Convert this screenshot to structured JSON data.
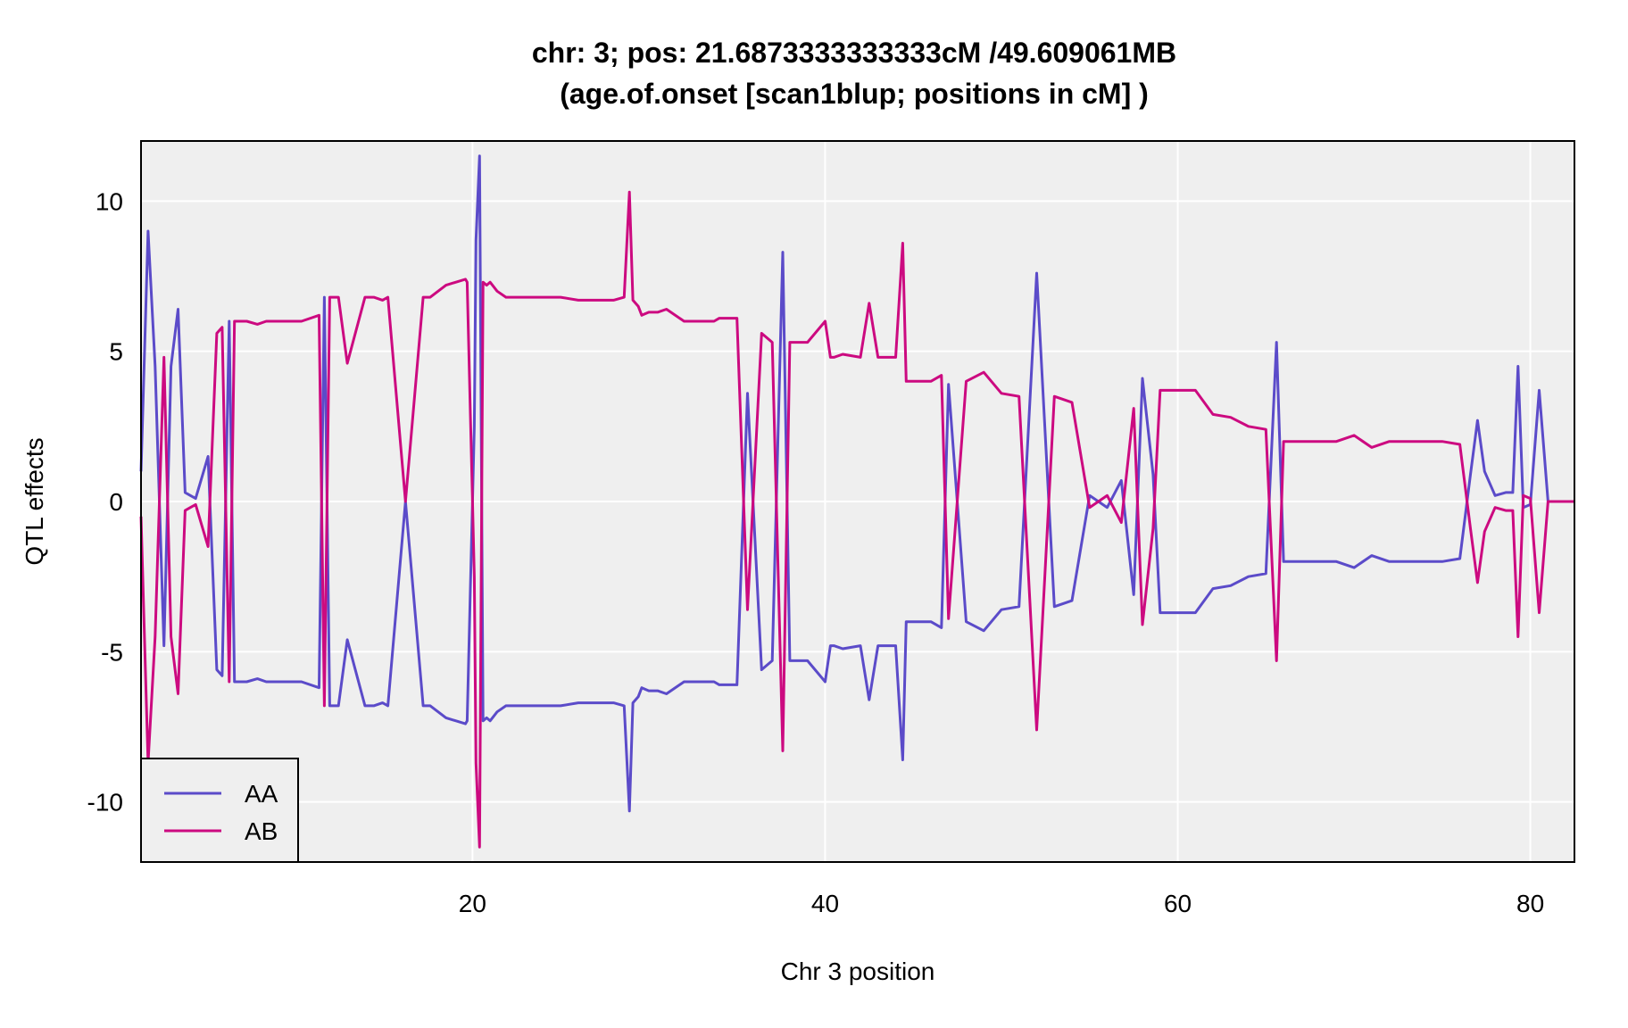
{
  "chart_data": {
    "type": "line",
    "title_line1": "chr: 3; pos: 21.6873333333333cM /49.609061MB",
    "title_line2": "(age.of.onset [scan1blup; positions in cM] )",
    "xlabel": "Chr 3 position",
    "ylabel": "QTL effects",
    "xlim": [
      1.2,
      82.5
    ],
    "ylim": [
      -12,
      12
    ],
    "x_ticks": [
      20,
      40,
      60,
      80
    ],
    "y_ticks": [
      -10,
      -5,
      0,
      5,
      10
    ],
    "grid": true,
    "legend_position": "bottom-left",
    "series": [
      {
        "name": "AA",
        "color": "#5b4bc9",
        "x": [
          1.2,
          1.6,
          2.0,
          2.5,
          2.9,
          3.3,
          3.7,
          4.0,
          4.3,
          5.0,
          5.5,
          5.8,
          6.2,
          6.5,
          7.2,
          7.8,
          8.3,
          9.3,
          10.3,
          11.3,
          11.6,
          11.9,
          12.4,
          12.9,
          13.9,
          14.4,
          14.9,
          15.2,
          16.2,
          17.2,
          17.6,
          18.5,
          19.6,
          19.7,
          20.0,
          20.1,
          20.2,
          20.4,
          20.6,
          20.8,
          21.0,
          21.4,
          21.9,
          22.4,
          22.9,
          23.4,
          24.0,
          25.0,
          26.0,
          27.0,
          28.0,
          28.6,
          28.9,
          29.1,
          29.4,
          29.6,
          30.0,
          30.5,
          31.0,
          32.0,
          33.0,
          33.7,
          34.0,
          35.0,
          35.6,
          36.4,
          37.0,
          37.6,
          38.0,
          38.6,
          39.0,
          40.0,
          40.3,
          40.5,
          41.0,
          42.0,
          42.5,
          43.0,
          44.0,
          44.4,
          44.6,
          45.0,
          46.0,
          46.6,
          47.0,
          48.0,
          49.0,
          50.0,
          51.0,
          52.0,
          53.0,
          54.0,
          55.0,
          56.0,
          56.8,
          57.5,
          58.0,
          58.6,
          59.0,
          60.0,
          61.0,
          62.0,
          63.0,
          64.0,
          65.0,
          65.6,
          66.0,
          67.0,
          68.0,
          69.0,
          70.0,
          71.0,
          72.0,
          73.0,
          74.0,
          75.0,
          76.0,
          76.6,
          77.0,
          77.4,
          78.0,
          78.6,
          79.0,
          79.3,
          79.6,
          80.0,
          80.5,
          81.0,
          82.5
        ],
        "y": [
          1.0,
          9.0,
          4.5,
          -4.8,
          4.5,
          6.4,
          0.3,
          0.2,
          0.1,
          1.5,
          -5.6,
          -5.8,
          6.0,
          -6.0,
          -6.0,
          -5.9,
          -6.0,
          -6.0,
          -6.0,
          -6.2,
          6.8,
          -6.8,
          -6.8,
          -4.6,
          -6.8,
          -6.8,
          -6.7,
          -6.8,
          0.0,
          -6.8,
          -6.8,
          -7.2,
          -7.4,
          -7.3,
          0.0,
          2.5,
          8.7,
          11.5,
          -7.3,
          -7.2,
          -7.3,
          -7.0,
          -6.8,
          -6.8,
          -6.8,
          -6.8,
          -6.8,
          -6.8,
          -6.7,
          -6.7,
          -6.7,
          -6.8,
          -10.3,
          -6.7,
          -6.5,
          -6.2,
          -6.3,
          -6.3,
          -6.4,
          -6.0,
          -6.0,
          -6.0,
          -6.1,
          -6.1,
          3.6,
          -5.6,
          -5.3,
          8.3,
          -5.3,
          -5.3,
          -5.3,
          -6.0,
          -4.8,
          -4.8,
          -4.9,
          -4.8,
          -6.6,
          -4.8,
          -4.8,
          -8.6,
          -4.0,
          -4.0,
          -4.0,
          -4.2,
          3.9,
          -4.0,
          -4.3,
          -3.6,
          -3.5,
          7.6,
          -3.5,
          -3.3,
          0.2,
          -0.2,
          0.7,
          -3.1,
          4.1,
          0.9,
          -3.7,
          -3.7,
          -3.7,
          -2.9,
          -2.8,
          -2.5,
          -2.4,
          5.3,
          -2.0,
          -2.0,
          -2.0,
          -2.0,
          -2.2,
          -1.8,
          -2.0,
          -2.0,
          -2.0,
          -2.0,
          -1.9,
          0.9,
          2.7,
          1.0,
          0.2,
          0.3,
          0.3,
          4.5,
          -0.2,
          -0.1,
          3.7,
          0.0,
          0.0
        ]
      },
      {
        "name": "AB",
        "color": "#cc0a80",
        "x": [
          1.2,
          1.6,
          2.0,
          2.5,
          2.9,
          3.3,
          3.7,
          4.0,
          4.3,
          5.0,
          5.5,
          5.8,
          6.2,
          6.5,
          7.2,
          7.8,
          8.3,
          9.3,
          10.3,
          11.3,
          11.6,
          11.9,
          12.4,
          12.9,
          13.9,
          14.4,
          14.9,
          15.2,
          16.2,
          17.2,
          17.6,
          18.5,
          19.6,
          19.7,
          20.0,
          20.1,
          20.2,
          20.4,
          20.6,
          20.8,
          21.0,
          21.4,
          21.9,
          22.4,
          22.9,
          23.4,
          24.0,
          25.0,
          26.0,
          27.0,
          28.0,
          28.6,
          28.9,
          29.1,
          29.4,
          29.6,
          30.0,
          30.5,
          31.0,
          32.0,
          33.0,
          33.7,
          34.0,
          35.0,
          35.6,
          36.4,
          37.0,
          37.6,
          38.0,
          38.6,
          39.0,
          40.0,
          40.3,
          40.5,
          41.0,
          42.0,
          42.5,
          43.0,
          44.0,
          44.4,
          44.6,
          45.0,
          46.0,
          46.6,
          47.0,
          48.0,
          49.0,
          50.0,
          51.0,
          52.0,
          53.0,
          54.0,
          55.0,
          56.0,
          56.8,
          57.5,
          58.0,
          58.6,
          59.0,
          60.0,
          61.0,
          62.0,
          63.0,
          64.0,
          65.0,
          65.6,
          66.0,
          67.0,
          68.0,
          69.0,
          70.0,
          71.0,
          72.0,
          73.0,
          74.0,
          75.0,
          76.0,
          76.6,
          77.0,
          77.4,
          78.0,
          78.6,
          79.0,
          79.3,
          79.6,
          80.0,
          80.5,
          81.0,
          82.5
        ],
        "y": [
          -0.5,
          -8.7,
          -4.5,
          4.8,
          -4.5,
          -6.4,
          -0.3,
          -0.2,
          -0.1,
          -1.5,
          5.6,
          5.8,
          -6.0,
          6.0,
          6.0,
          5.9,
          6.0,
          6.0,
          6.0,
          6.2,
          -6.8,
          6.8,
          6.8,
          4.6,
          6.8,
          6.8,
          6.7,
          6.8,
          0.0,
          6.8,
          6.8,
          7.2,
          7.4,
          7.3,
          0.0,
          -2.5,
          -8.7,
          -11.5,
          7.3,
          7.2,
          7.3,
          7.0,
          6.8,
          6.8,
          6.8,
          6.8,
          6.8,
          6.8,
          6.7,
          6.7,
          6.7,
          6.8,
          10.3,
          6.7,
          6.5,
          6.2,
          6.3,
          6.3,
          6.4,
          6.0,
          6.0,
          6.0,
          6.1,
          6.1,
          -3.6,
          5.6,
          5.3,
          -8.3,
          5.3,
          5.3,
          5.3,
          6.0,
          4.8,
          4.8,
          4.9,
          4.8,
          6.6,
          4.8,
          4.8,
          8.6,
          4.0,
          4.0,
          4.0,
          4.2,
          -3.9,
          4.0,
          4.3,
          3.6,
          3.5,
          -7.6,
          3.5,
          3.3,
          -0.2,
          0.2,
          -0.7,
          3.1,
          -4.1,
          -0.9,
          3.7,
          3.7,
          3.7,
          2.9,
          2.8,
          2.5,
          2.4,
          -5.3,
          2.0,
          2.0,
          2.0,
          2.0,
          2.2,
          1.8,
          2.0,
          2.0,
          2.0,
          2.0,
          1.9,
          -0.9,
          -2.7,
          -1.0,
          -0.2,
          -0.3,
          -0.3,
          -4.5,
          0.2,
          0.1,
          -3.7,
          0.0,
          0.0
        ]
      }
    ]
  }
}
